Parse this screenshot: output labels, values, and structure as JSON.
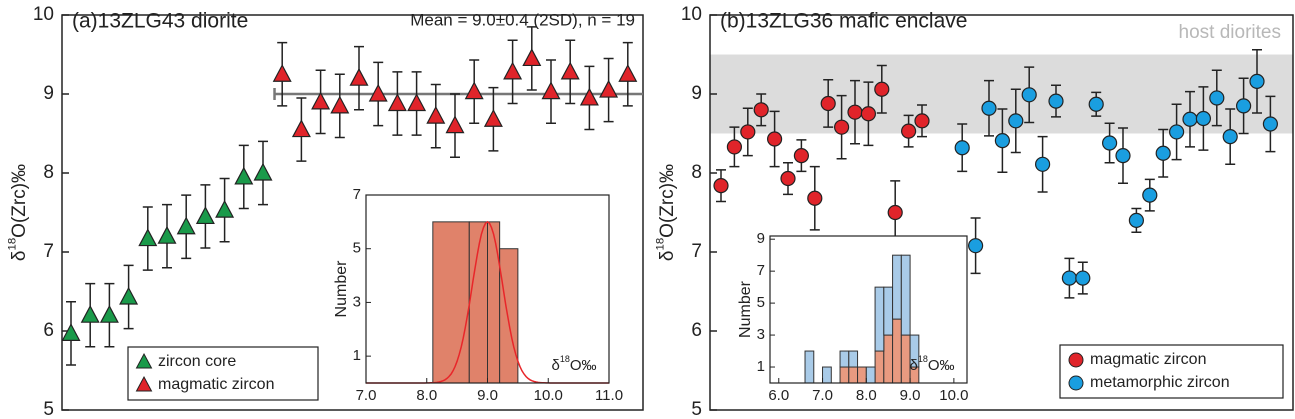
{
  "chart_data": [
    {
      "type": "errorbar",
      "title": "(a)13ZLG43 diorite",
      "annotation": "Mean = 9.0±0.4 (2SD), n = 19",
      "y_label": [
        "δ",
        "18",
        "O(Zrc)‰"
      ],
      "categories": [
        null,
        null,
        null,
        null,
        null,
        null,
        null,
        null,
        null,
        null,
        null,
        null,
        null,
        null,
        null,
        null,
        null,
        null,
        null,
        null,
        null,
        null,
        null,
        null,
        null,
        null,
        null,
        null,
        null,
        null
      ],
      "series": [
        {
          "name": "zircon core",
          "color": "#1a9a4a",
          "marker": "triangle",
          "values": [
            5.97,
            6.2,
            6.2,
            6.43,
            7.17,
            7.2,
            7.32,
            7.45,
            7.53,
            7.95,
            8.0,
            null,
            null,
            null,
            null,
            null,
            null,
            null,
            null,
            null,
            null,
            null,
            null,
            null,
            null,
            null,
            null,
            null,
            null,
            null
          ],
          "errors": [
            0.4,
            0.4,
            0.4,
            0.4,
            0.4,
            0.4,
            0.4,
            0.4,
            0.4,
            0.4,
            0.4,
            null,
            null,
            null,
            null,
            null,
            null,
            null,
            null,
            null,
            null,
            null,
            null,
            null,
            null,
            null,
            null,
            null,
            null,
            null
          ]
        },
        {
          "name": "magmatic zircon",
          "color": "#e0242a",
          "marker": "triangle",
          "values": [
            null,
            null,
            null,
            null,
            null,
            null,
            null,
            null,
            null,
            null,
            null,
            9.25,
            8.55,
            8.9,
            8.85,
            9.2,
            9.0,
            8.88,
            8.88,
            8.72,
            8.6,
            9.03,
            8.68,
            9.28,
            9.45,
            9.03,
            9.28,
            8.95,
            9.05,
            9.25
          ],
          "errors": [
            null,
            null,
            null,
            null,
            null,
            null,
            null,
            null,
            null,
            null,
            null,
            0.4,
            0.4,
            0.4,
            0.4,
            0.4,
            0.4,
            0.4,
            0.4,
            0.4,
            0.4,
            0.4,
            0.4,
            0.4,
            0.4,
            0.4,
            0.4,
            0.4,
            0.4,
            0.4
          ]
        }
      ],
      "mean_line": 9.0,
      "ylim": [
        5,
        10
      ],
      "yticks": [
        5,
        6,
        7,
        8,
        9,
        10
      ]
    },
    {
      "type": "histogram",
      "y_label": "Number",
      "x_label": [
        "δ",
        "18",
        "O‰"
      ],
      "bins": [
        8.1,
        8.7,
        9.0,
        9.2,
        9.5
      ],
      "values": [
        6,
        6,
        6,
        5
      ],
      "color": "#e0826a",
      "fit": {
        "mean": 9.0,
        "sd": 0.25,
        "peak": 6,
        "color": "#e8262a"
      },
      "xlim": [
        7.0,
        11.0
      ],
      "xticks": [
        {
          "value": 7,
          "label": "7.0"
        },
        {
          "value": 8,
          "label": "8.0"
        },
        {
          "value": 9,
          "label": "9.0"
        },
        {
          "value": 10,
          "label": "10.0"
        },
        {
          "value": 11,
          "label": "11.0"
        }
      ],
      "ylim": [
        0,
        7
      ],
      "yticks": [
        1,
        3,
        5,
        7
      ]
    },
    {
      "type": "errorbar",
      "title": "(b)13ZLG36 mafic enclave",
      "y_label": [
        "δ",
        "18",
        "O(Zrc)‰"
      ],
      "band": [
        8.5,
        9.5
      ],
      "band_label": "host diorites",
      "categories": [
        null,
        null,
        null,
        null,
        null,
        null,
        null,
        null,
        null,
        null,
        null,
        null,
        null,
        null,
        null,
        null,
        null,
        null,
        null,
        null,
        null,
        null,
        null,
        null,
        null,
        null,
        null,
        null,
        null,
        null,
        null,
        null,
        null,
        null,
        null,
        null,
        null,
        null,
        null,
        null,
        null,
        null
      ],
      "series": [
        {
          "name": "magmatic zircon",
          "color": "#e0242a",
          "marker": "circle",
          "values": [
            7.84,
            8.33,
            8.52,
            8.8,
            8.43,
            7.93,
            8.22,
            7.68,
            8.88,
            8.58,
            8.77,
            8.75,
            9.06,
            7.5,
            8.53,
            8.66,
            null,
            null,
            null,
            null,
            null,
            null,
            null,
            null,
            null,
            null,
            null,
            null,
            null,
            null,
            null,
            null,
            null,
            null,
            null,
            null,
            null,
            null,
            null,
            null,
            null,
            null
          ],
          "errors": [
            0.2,
            0.25,
            0.3,
            0.2,
            0.35,
            0.2,
            0.2,
            0.4,
            0.3,
            0.4,
            0.4,
            0.4,
            0.3,
            0.4,
            0.2,
            0.2,
            null,
            null,
            null,
            null,
            null,
            null,
            null,
            null,
            null,
            null,
            null,
            null,
            null,
            null,
            null,
            null,
            null,
            null,
            null,
            null,
            null,
            null,
            null,
            null,
            null,
            null
          ]
        },
        {
          "name": "metamorphic zircon",
          "color": "#1a9ee0",
          "marker": "circle",
          "values": [
            null,
            null,
            null,
            null,
            null,
            null,
            null,
            null,
            null,
            null,
            null,
            null,
            null,
            null,
            null,
            null,
            null,
            null,
            8.32,
            7.08,
            8.82,
            8.41,
            8.66,
            8.99,
            8.11,
            8.91,
            6.67,
            6.67,
            8.87,
            8.38,
            8.22,
            7.4,
            7.72,
            8.25,
            8.52,
            8.68,
            8.69,
            8.95,
            8.46,
            8.85,
            9.16,
            8.62
          ],
          "errors": [
            null,
            null,
            null,
            null,
            null,
            null,
            null,
            null,
            null,
            null,
            null,
            null,
            null,
            null,
            null,
            null,
            null,
            null,
            0.3,
            0.35,
            0.35,
            0.4,
            0.4,
            0.35,
            0.35,
            0.2,
            0.25,
            0.2,
            0.15,
            0.25,
            0.35,
            0.15,
            0.2,
            0.3,
            0.35,
            0.35,
            0.4,
            0.35,
            0.35,
            0.35,
            0.4,
            0.35
          ]
        }
      ],
      "ylim": [
        5,
        10
      ],
      "yticks": [
        5,
        6,
        7,
        8,
        9,
        10
      ]
    },
    {
      "type": "stacked-histogram",
      "y_label": "Number",
      "x_label": [
        "δ",
        "18",
        "O‰"
      ],
      "bins": [
        6.6,
        6.8,
        7.0,
        7.2,
        7.4,
        7.6,
        7.8,
        8.0,
        8.2,
        8.4,
        8.6,
        8.8,
        9.0,
        9.2
      ],
      "series": [
        {
          "name": "magmatic zircon",
          "color": "#e89a80",
          "values": [
            0,
            0,
            0,
            0,
            1,
            1,
            1,
            0,
            2,
            3,
            4,
            3,
            1
          ]
        },
        {
          "name": "metamorphic zircon",
          "color": "#a9cbe8",
          "values": [
            2,
            0,
            1,
            0,
            1,
            1,
            0,
            1,
            4,
            3,
            4,
            5,
            2
          ]
        }
      ],
      "xlim": [
        5.8,
        10.3
      ],
      "xticks": [
        {
          "value": 6,
          "label": "6.0"
        },
        {
          "value": 7,
          "label": "7.0"
        },
        {
          "value": 8,
          "label": "8.0"
        },
        {
          "value": 9,
          "label": "9.0"
        },
        {
          "value": 10,
          "label": "10.0"
        }
      ],
      "ylim": [
        0,
        9.2
      ],
      "yticks": [
        1,
        3,
        5,
        7,
        9
      ]
    }
  ]
}
